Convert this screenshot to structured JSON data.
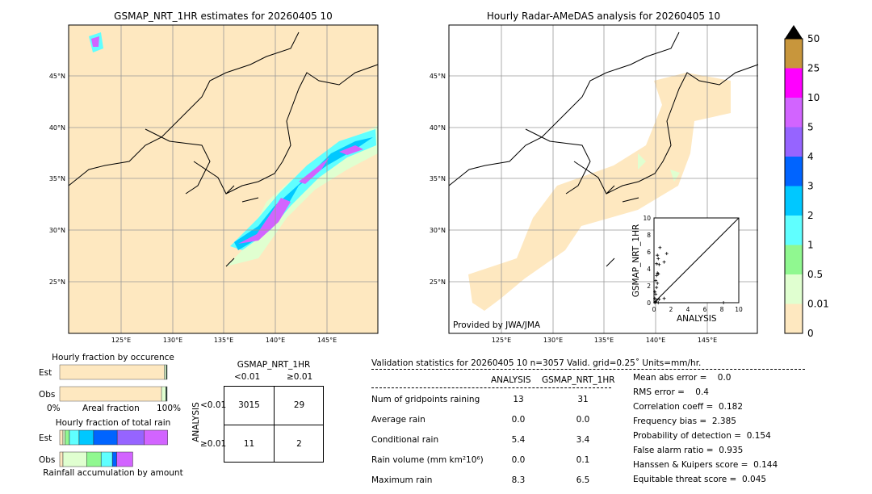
{
  "left_map": {
    "title": "GSMAP_NRT_1HR estimates for 20260405 10"
  },
  "right_map": {
    "title": "Hourly Radar-AMeDAS analysis for 20260405 10",
    "credit": "Provided by JWA/JMA"
  },
  "lat_labels": [
    "45°N",
    "40°N",
    "35°N",
    "30°N",
    "25°N"
  ],
  "lon_labels": [
    "125°E",
    "130°E",
    "135°E",
    "140°E",
    "145°E"
  ],
  "colorbar": {
    "labels": [
      "0",
      "0.01",
      "0.5",
      "1",
      "2",
      "3",
      "4",
      "5",
      "10",
      "25",
      "50"
    ],
    "colors": [
      "#fee8c0",
      "#e0ffd0",
      "#90f890",
      "#60ffff",
      "#00c8ff",
      "#0064ff",
      "#9664ff",
      "#d264ff",
      "#ff00ff",
      "#c8963c"
    ],
    "extend_color": "#000000"
  },
  "chart_data": [
    {
      "type": "scatter",
      "xlabel": "ANALYSIS",
      "ylabel": "GSMAP_NRT_1HR",
      "xlim": [
        0,
        10
      ],
      "ylim": [
        0,
        10
      ],
      "xticks": [
        "0",
        "2",
        "4",
        "6",
        "8",
        "10"
      ],
      "yticks": [
        "0",
        "2",
        "4",
        "6",
        "8",
        "10"
      ],
      "x": [
        0.7,
        1.5,
        1.2,
        0.4,
        0.5,
        0.6,
        0.3,
        0.4,
        0.5,
        0.3,
        0.2,
        0.4,
        0.3,
        0.1,
        0.2,
        0.1,
        0.3,
        0.6,
        1.2,
        0.2,
        8.2,
        0.1,
        0.5
      ],
      "y": [
        6.5,
        5.8,
        4.8,
        5.6,
        5.2,
        4.5,
        4.6,
        3.5,
        3.4,
        3.2,
        2.6,
        2.3,
        1.8,
        1.3,
        1.0,
        0.5,
        0.3,
        0.4,
        0.5,
        0.1,
        0.0,
        0.0,
        0.0
      ]
    },
    {
      "type": "bar",
      "title": "Hourly fraction by occurence",
      "xlabel": "Areal fraction",
      "categories": [
        "Est",
        "Obs"
      ],
      "xticks": [
        "0%",
        "100%"
      ],
      "series": [
        {
          "values": [
            0.974,
            0.948
          ]
        },
        {
          "values": [
            0.017,
            0.04
          ]
        },
        {
          "values": [
            0.009,
            0.012
          ]
        }
      ]
    },
    {
      "type": "bar",
      "title": "Hourly fraction of total rain",
      "xlabel": "Rainfall accumulation by amount",
      "categories": [
        "Est",
        "Obs"
      ],
      "est_segments": [
        0.03,
        0.02,
        0.04,
        0.09,
        0.135,
        0.22,
        0.25,
        0.22
      ],
      "obs_segments": [
        0.03,
        0.22,
        0.135,
        0.105,
        0.04,
        0.15
      ]
    }
  ],
  "contingency": {
    "title": "GSMAP_NRT_1HR",
    "col_labels": [
      "<0.01",
      "≥0.01"
    ],
    "row_title": "ANALYSIS",
    "row_labels": [
      "<0.01",
      "≥0.01"
    ],
    "cells": [
      [
        "3015",
        "29"
      ],
      [
        "11",
        "2"
      ]
    ]
  },
  "stats": {
    "header": "Validation statistics for 20260405 10  n=3057 Valid. grid=0.25˚ Units=mm/hr.",
    "col_headers": [
      "ANALYSIS",
      "GSMAP_NRT_1HR"
    ],
    "rows": [
      {
        "label": "Num of gridpoints raining",
        "a": "13",
        "g": "31"
      },
      {
        "label": "Average rain",
        "a": "0.0",
        "g": "0.0"
      },
      {
        "label": "Conditional rain",
        "a": "5.4",
        "g": "3.4"
      },
      {
        "label": "Rain volume (mm km²10⁶)",
        "a": "0.0",
        "g": "0.1"
      },
      {
        "label": "Maximum rain",
        "a": "8.3",
        "g": "6.5"
      }
    ],
    "scores": [
      "Mean abs error =    0.0",
      "RMS error =    0.4",
      "Correlation coeff =  0.182",
      "Frequency bias =  2.385",
      "Probability of detection =  0.154",
      "False alarm ratio =  0.935",
      "Hanssen & Kuipers score =  0.144",
      "Equitable threat score =  0.045"
    ]
  }
}
